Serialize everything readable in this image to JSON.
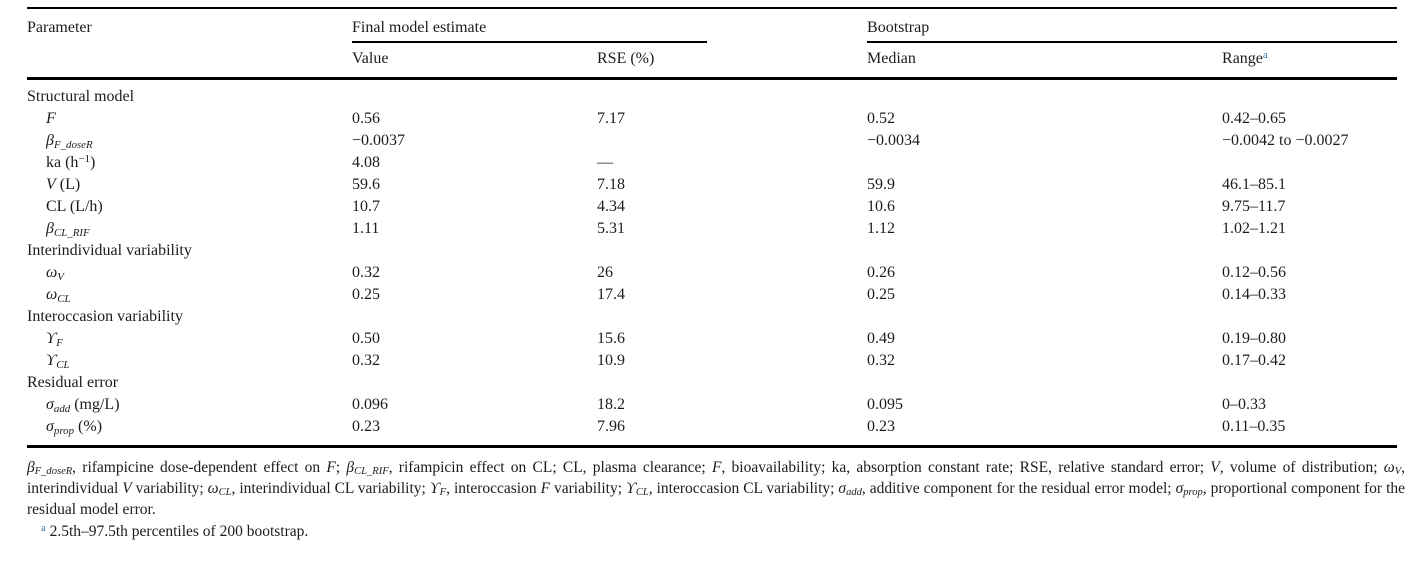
{
  "colors": {
    "ink": "#1c1c1e",
    "accent_link": "#2e6f9f",
    "rule": "#000000"
  },
  "table": {
    "header": {
      "col_parameter": "Parameter",
      "group_final": "Final model estimate",
      "group_bootstrap": "Bootstrap",
      "col_value": "Value",
      "col_rse": "RSE (%)",
      "col_median": "Median",
      "col_range": "Range",
      "range_superscript": "a"
    },
    "rows": [
      {
        "type": "section",
        "label_parts": [
          {
            "t": "Structural model"
          }
        ],
        "value": "",
        "rse": "",
        "median": "",
        "range": ""
      },
      {
        "type": "param",
        "label_parts": [
          {
            "t": "F",
            "i": true
          }
        ],
        "value": "0.56",
        "rse": "7.17",
        "median": "0.52",
        "range": "0.42–0.65"
      },
      {
        "type": "param",
        "label_parts": [
          {
            "t": "β",
            "i": true
          },
          {
            "t": "F_doseR",
            "i": true,
            "sub": true
          }
        ],
        "value": "−0.0037",
        "rse": "",
        "median": "−0.0034",
        "range": "−0.0042 to −0.0027"
      },
      {
        "type": "param",
        "label_parts": [
          {
            "t": "ka (h"
          },
          {
            "t": "−1",
            "sup": true
          },
          {
            "t": ")"
          }
        ],
        "value": "4.08",
        "rse": "—",
        "median": "",
        "range": ""
      },
      {
        "type": "param",
        "label_parts": [
          {
            "t": "V",
            "i": true
          },
          {
            "t": " (L)"
          }
        ],
        "value": "59.6",
        "rse": "7.18",
        "median": "59.9",
        "range": "46.1–85.1"
      },
      {
        "type": "param",
        "label_parts": [
          {
            "t": "CL (L/h)"
          }
        ],
        "value": "10.7",
        "rse": "4.34",
        "median": "10.6",
        "range": "9.75–11.7"
      },
      {
        "type": "param",
        "label_parts": [
          {
            "t": "β",
            "i": true
          },
          {
            "t": "CL_RIF",
            "i": true,
            "sub": true
          }
        ],
        "value": "1.11",
        "rse": "5.31",
        "median": "1.12",
        "range": "1.02–1.21"
      },
      {
        "type": "section",
        "label_parts": [
          {
            "t": "Interindividual variability"
          }
        ],
        "value": "",
        "rse": "",
        "median": "",
        "range": ""
      },
      {
        "type": "param",
        "label_parts": [
          {
            "t": "ω",
            "i": true
          },
          {
            "t": "V",
            "i": true,
            "sub": true
          }
        ],
        "value": "0.32",
        "rse": "26",
        "median": "0.26",
        "range": "0.12–0.56"
      },
      {
        "type": "param",
        "label_parts": [
          {
            "t": "ω",
            "i": true
          },
          {
            "t": "CL",
            "i": true,
            "sub": true
          }
        ],
        "value": "0.25",
        "rse": "17.4",
        "median": "0.25",
        "range": "0.14–0.33"
      },
      {
        "type": "section",
        "label_parts": [
          {
            "t": "Interoccasion variability"
          }
        ],
        "value": "",
        "rse": "",
        "median": "",
        "range": ""
      },
      {
        "type": "param",
        "label_parts": [
          {
            "t": "ϒ",
            "i": true
          },
          {
            "t": "F",
            "i": true,
            "sub": true
          }
        ],
        "value": "0.50",
        "rse": "15.6",
        "median": "0.49",
        "range": "0.19–0.80"
      },
      {
        "type": "param",
        "label_parts": [
          {
            "t": "ϒ",
            "i": true
          },
          {
            "t": "CL",
            "i": true,
            "sub": true
          }
        ],
        "value": "0.32",
        "rse": "10.9",
        "median": "0.32",
        "range": "0.17–0.42"
      },
      {
        "type": "section",
        "label_parts": [
          {
            "t": "Residual error"
          }
        ],
        "value": "",
        "rse": "",
        "median": "",
        "range": ""
      },
      {
        "type": "param",
        "label_parts": [
          {
            "t": "σ",
            "i": true
          },
          {
            "t": "add",
            "i": true,
            "sub": true
          },
          {
            "t": " (mg/L)"
          }
        ],
        "value": "0.096",
        "rse": "18.2",
        "median": "0.095",
        "range": "0–0.33"
      },
      {
        "type": "param",
        "label_parts": [
          {
            "t": "σ",
            "i": true
          },
          {
            "t": "prop",
            "i": true,
            "sub": true
          },
          {
            "t": " (%)"
          }
        ],
        "value": "0.23",
        "rse": "7.96",
        "median": "0.23",
        "range": "0.11–0.35"
      }
    ]
  },
  "footnotes": {
    "marker": "a",
    "abbrev_parts": [
      {
        "t": "β",
        "i": true
      },
      {
        "t": "F_doseR",
        "i": true,
        "sub": true
      },
      {
        "t": ", rifampicine dose-dependent effect on "
      },
      {
        "t": "F",
        "i": true
      },
      {
        "t": "; "
      },
      {
        "t": "β",
        "i": true
      },
      {
        "t": "CL_RIF",
        "i": true,
        "sub": true
      },
      {
        "t": ", rifampicin effect on CL; CL, plasma clearance; "
      },
      {
        "t": "F",
        "i": true
      },
      {
        "t": ", bioavailability; ka, absorption constant rate; RSE, relative standard error; "
      },
      {
        "t": "V",
        "i": true
      },
      {
        "t": ", volume of distribution; "
      },
      {
        "t": "ω",
        "i": true
      },
      {
        "t": "V",
        "i": true,
        "sub": true
      },
      {
        "t": ", interindividual "
      },
      {
        "t": "V",
        "i": true
      },
      {
        "t": " variability; "
      },
      {
        "t": "ω",
        "i": true
      },
      {
        "t": "CL",
        "i": true,
        "sub": true
      },
      {
        "t": ", interindividual CL variability; "
      },
      {
        "t": "ϒ",
        "i": true
      },
      {
        "t": "F",
        "i": true,
        "sub": true
      },
      {
        "t": ", interoccasion "
      },
      {
        "t": "F",
        "i": true
      },
      {
        "t": " variability; "
      },
      {
        "t": "ϒ",
        "i": true
      },
      {
        "t": "CL",
        "i": true,
        "sub": true
      },
      {
        "t": ", interoccasion CL variability; "
      },
      {
        "t": "σ",
        "i": true
      },
      {
        "t": "add",
        "i": true,
        "sub": true
      },
      {
        "t": ", additive component for the residual error model; "
      },
      {
        "t": "σ",
        "i": true
      },
      {
        "t": "prop",
        "i": true,
        "sub": true
      },
      {
        "t": ", proportional component for the residual model error."
      }
    ],
    "bootstrap_note": "2.5th–97.5th percentiles of 200 bootstrap."
  }
}
